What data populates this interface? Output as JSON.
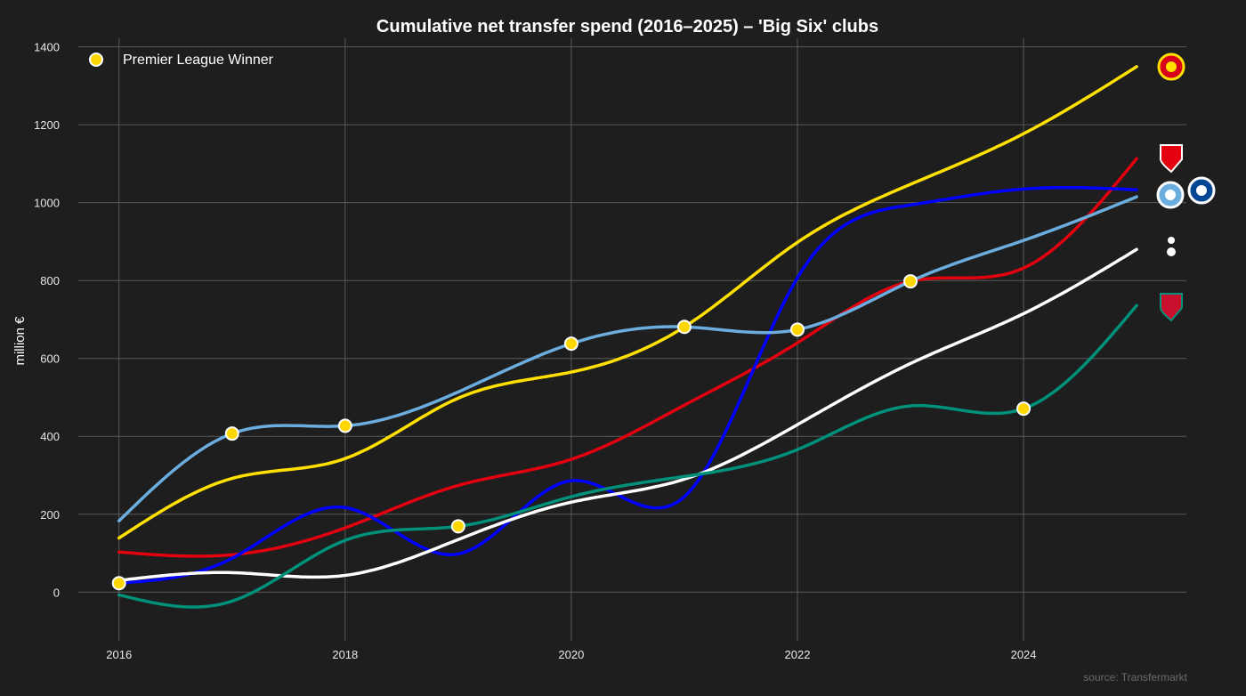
{
  "chart_data": {
    "type": "line",
    "title": "Cumulative net transfer spend (2016–2025) – 'Big Six' clubs",
    "xlabel": "",
    "ylabel": "million €",
    "xlim": [
      2015.64,
      2025.44
    ],
    "ylim": [
      -125,
      1422
    ],
    "xticks": [
      2016,
      2018,
      2020,
      2022,
      2024
    ],
    "yticks": [
      0,
      200,
      400,
      600,
      800,
      1000,
      1200,
      1400
    ],
    "grid": true,
    "background": "#1e1e1e",
    "legend": {
      "placement": "top-left",
      "entries": [
        {
          "label": "Premier League Winner",
          "marker_color": "#ffd700"
        }
      ]
    },
    "source": "source: Transfermarkt",
    "x": [
      2016,
      2017,
      2018,
      2019,
      2020,
      2021,
      2022,
      2023,
      2024,
      2025
    ],
    "series": [
      {
        "club": "Manchester United",
        "logo": "man-utd-crest",
        "color": "#ffe000",
        "values": [
          139,
          292,
          343,
          498,
          565,
          681,
          898,
          1047,
          1177,
          1349
        ]
      },
      {
        "club": "Arsenal",
        "logo": "arsenal-crest",
        "color": "#e3000f",
        "values": [
          103,
          96,
          165,
          274,
          341,
          480,
          640,
          798,
          832,
          1113
        ]
      },
      {
        "club": "Chelsea",
        "logo": "chelsea-crest",
        "color": "#0000ff",
        "values": [
          23,
          87,
          217,
          98,
          286,
          245,
          807,
          994,
          1035,
          1033
        ]
      },
      {
        "club": "Manchester City",
        "logo": "man-city-crest",
        "color": "#6caddf",
        "values": [
          183,
          407,
          427,
          514,
          638,
          681,
          674,
          798,
          903,
          1015
        ]
      },
      {
        "club": "Tottenham",
        "logo": "tottenham-crest",
        "color": "#ffffff",
        "values": [
          30,
          50,
          43,
          135,
          231,
          290,
          430,
          587,
          715,
          880
        ]
      },
      {
        "club": "Liverpool",
        "logo": "liverpool-crest",
        "color": "#00917a",
        "values": [
          -7,
          -23,
          133,
          169,
          245,
          297,
          366,
          478,
          471,
          736
        ]
      }
    ],
    "winners": [
      {
        "year": 2016,
        "club": "Chelsea",
        "value": 23
      },
      {
        "year": 2017,
        "club": "Manchester City",
        "value": 407
      },
      {
        "year": 2018,
        "club": "Manchester City",
        "value": 427
      },
      {
        "year": 2019,
        "club": "Liverpool",
        "value": 169
      },
      {
        "year": 2020,
        "club": "Manchester City",
        "value": 638
      },
      {
        "year": 2021,
        "club": "Manchester City",
        "value": 681
      },
      {
        "year": 2022,
        "club": "Manchester City",
        "value": 674
      },
      {
        "year": 2023,
        "club": "Manchester City",
        "value": 798
      },
      {
        "year": 2024,
        "club": "Liverpool",
        "value": 471
      }
    ]
  }
}
